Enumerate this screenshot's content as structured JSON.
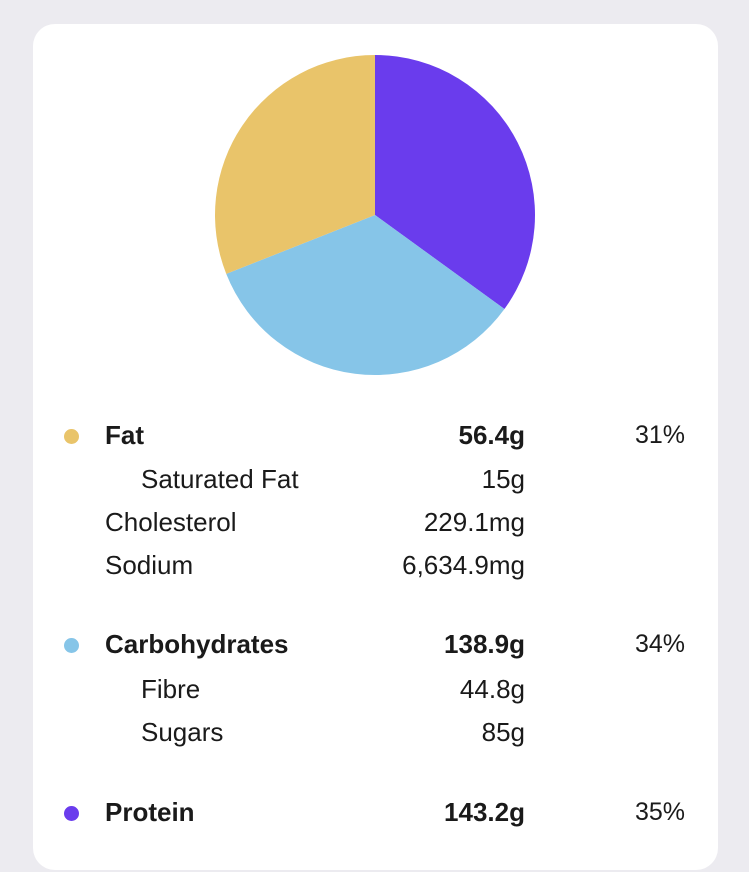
{
  "chart_data": {
    "type": "pie",
    "slices": [
      {
        "label": "Protein",
        "value": 35,
        "color": "#6a3ced"
      },
      {
        "label": "Carbohydrates",
        "value": 34,
        "color": "#86c5e8"
      },
      {
        "label": "Fat",
        "value": 31,
        "color": "#e9c46a"
      }
    ]
  },
  "fat": {
    "label": "Fat",
    "amount": "56.4g",
    "percent": "31%",
    "color": "#e9c46a",
    "saturated_fat": {
      "label": "Saturated Fat",
      "amount": "15g"
    }
  },
  "cholesterol": {
    "label": "Cholesterol",
    "amount": "229.1mg"
  },
  "sodium": {
    "label": "Sodium",
    "amount": "6,634.9mg"
  },
  "carbohydrates": {
    "label": "Carbohydrates",
    "amount": "138.9g",
    "percent": "34%",
    "color": "#86c5e8",
    "fibre": {
      "label": "Fibre",
      "amount": "44.8g"
    },
    "sugars": {
      "label": "Sugars",
      "amount": "85g"
    }
  },
  "protein": {
    "label": "Protein",
    "amount": "143.2g",
    "percent": "35%",
    "color": "#6a3ced"
  }
}
